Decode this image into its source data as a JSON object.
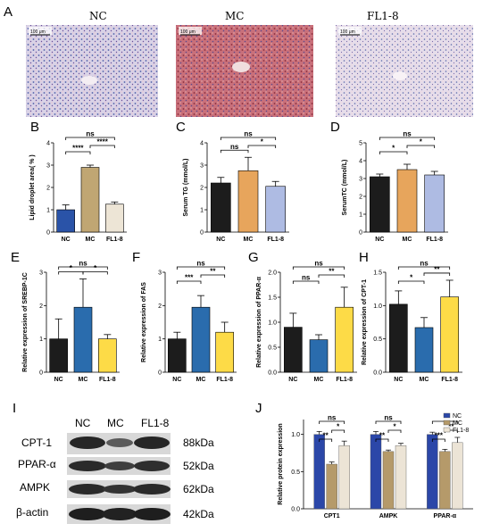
{
  "panel_letters": {
    "A": "A",
    "B": "B",
    "C": "C",
    "D": "D",
    "E": "E",
    "F": "F",
    "G": "G",
    "H": "H",
    "I": "I",
    "J": "J"
  },
  "colors": {
    "nc": "#1c1c1c",
    "mc_tan": "#c0a673",
    "fl_light": "#ede5d6",
    "mc_orange": "#e7a55c",
    "fl_blue": "#aebbe3",
    "mc_blue": "#2a6cad",
    "fl_yellow": "#fddb47",
    "j_nc": "#2b47a8",
    "j_mc": "#b59a6a",
    "j_fl": "#ece4d6"
  },
  "histology": {
    "groups": [
      "NC",
      "MC",
      "FL1-8"
    ],
    "scale_bar": "100 μm"
  },
  "western": {
    "lanes": [
      "NC",
      "MC",
      "FL1-8"
    ],
    "bands": [
      {
        "label": "CPT-1",
        "kda": "88kDa"
      },
      {
        "label": "PPAR-α",
        "kda": "52kDa"
      },
      {
        "label": "AMPK",
        "kda": "62kDa"
      },
      {
        "label": "β-actin",
        "kda": "42kDa"
      }
    ]
  },
  "chart_data": [
    {
      "panel": "B",
      "type": "bar",
      "categories": [
        "NC",
        "MC",
        "FL1-8"
      ],
      "values": [
        1.0,
        2.9,
        1.25
      ],
      "errors": [
        0.22,
        0.1,
        0.1
      ],
      "ylabel": "Lipid droplet area( % )",
      "ylim": [
        0,
        4
      ],
      "yticks": [
        "0",
        "1",
        "2",
        "3",
        "4"
      ],
      "sig": [
        {
          "from": 0,
          "to": 2,
          "label": "ns"
        },
        {
          "from": 0,
          "to": 1,
          "label": "****"
        },
        {
          "from": 1,
          "to": 2,
          "label": "****"
        }
      ]
    },
    {
      "panel": "C",
      "type": "bar",
      "categories": [
        "NC",
        "MC",
        "FL1-8"
      ],
      "values": [
        2.2,
        2.75,
        2.05
      ],
      "errors": [
        0.25,
        0.6,
        0.22
      ],
      "ylabel": "Serum TG (mmol/L)",
      "ylim": [
        0,
        4
      ],
      "yticks": [
        "0",
        "1",
        "2",
        "3",
        "4"
      ],
      "sig": [
        {
          "from": 0,
          "to": 2,
          "label": "ns"
        },
        {
          "from": 0,
          "to": 1,
          "label": "ns"
        },
        {
          "from": 1,
          "to": 2,
          "label": "*"
        }
      ]
    },
    {
      "panel": "D",
      "type": "bar",
      "categories": [
        "NC",
        "MC",
        "FL1-8"
      ],
      "values": [
        3.1,
        3.5,
        3.2
      ],
      "errors": [
        0.15,
        0.3,
        0.2
      ],
      "ylabel": "SerumTC (mmol/L)",
      "ylim": [
        0,
        5
      ],
      "yticks": [
        "0",
        "1",
        "2",
        "3",
        "4",
        "5"
      ],
      "sig": [
        {
          "from": 0,
          "to": 2,
          "label": "ns"
        },
        {
          "from": 0,
          "to": 1,
          "label": "*"
        },
        {
          "from": 1,
          "to": 2,
          "label": "*"
        }
      ]
    },
    {
      "panel": "E",
      "type": "bar",
      "categories": [
        "NC",
        "MC",
        "FL1-8"
      ],
      "values": [
        1.0,
        1.95,
        1.0
      ],
      "errors": [
        0.6,
        0.85,
        0.13
      ],
      "ylabel": "Relative expression of SREBP-1C",
      "ylim": [
        0,
        3
      ],
      "yticks": [
        "0",
        "1",
        "2",
        "3"
      ],
      "sig": [
        {
          "from": 0,
          "to": 2,
          "label": "ns"
        },
        {
          "from": 0,
          "to": 1,
          "label": "*"
        },
        {
          "from": 1,
          "to": 2,
          "label": "*"
        }
      ]
    },
    {
      "panel": "F",
      "type": "bar",
      "categories": [
        "NC",
        "MC",
        "FL1-8"
      ],
      "values": [
        1.0,
        1.95,
        1.2
      ],
      "errors": [
        0.2,
        0.35,
        0.3
      ],
      "ylabel": "Relative expression of FAS",
      "ylim": [
        0,
        3
      ],
      "yticks": [
        "0",
        "1",
        "2",
        "3"
      ],
      "sig": [
        {
          "from": 0,
          "to": 2,
          "label": "ns"
        },
        {
          "from": 0,
          "to": 1,
          "label": "***"
        },
        {
          "from": 1,
          "to": 2,
          "label": "**"
        }
      ]
    },
    {
      "panel": "G",
      "type": "bar",
      "categories": [
        "NC",
        "MC",
        "FL1-8"
      ],
      "values": [
        0.9,
        0.65,
        1.3
      ],
      "errors": [
        0.28,
        0.1,
        0.4
      ],
      "ylabel": "Relative expression of PPAR-α",
      "ylim": [
        0,
        2
      ],
      "yticks": [
        "0.0",
        "0.5",
        "1.0",
        "1.5",
        "2.0"
      ],
      "sig": [
        {
          "from": 0,
          "to": 2,
          "label": "ns"
        },
        {
          "from": 0,
          "to": 1,
          "label": "ns"
        },
        {
          "from": 1,
          "to": 2,
          "label": "**"
        }
      ]
    },
    {
      "panel": "H",
      "type": "bar",
      "categories": [
        "NC",
        "MC",
        "FL1-8"
      ],
      "values": [
        1.02,
        0.67,
        1.13
      ],
      "errors": [
        0.2,
        0.15,
        0.25
      ],
      "ylabel": "Relative expression of CPT-1",
      "ylim": [
        0,
        1.5
      ],
      "yticks": [
        "0.0",
        "0.5",
        "1.0",
        "1.5"
      ],
      "sig": [
        {
          "from": 0,
          "to": 2,
          "label": "ns"
        },
        {
          "from": 0,
          "to": 1,
          "label": "*"
        },
        {
          "from": 1,
          "to": 2,
          "label": "**"
        }
      ]
    },
    {
      "panel": "J",
      "type": "bar",
      "categories": [
        "CPT1",
        "AMPK",
        "PPAR-α"
      ],
      "ylabel": "Relative protein expression",
      "ylim": [
        0,
        1.2
      ],
      "yticks": [
        "0.0",
        "0.5",
        "1.0"
      ],
      "legend": "top-right",
      "series": [
        {
          "name": "NC",
          "values": [
            1.0,
            1.0,
            1.0
          ],
          "errors": [
            0.04,
            0.04,
            0.03
          ]
        },
        {
          "name": "MC",
          "values": [
            0.6,
            0.77,
            0.77
          ],
          "errors": [
            0.03,
            0.02,
            0.03
          ]
        },
        {
          "name": "FL1-8",
          "values": [
            0.85,
            0.85,
            0.89
          ],
          "errors": [
            0.06,
            0.03,
            0.07
          ]
        }
      ],
      "sig": [
        {
          "group": 0,
          "from": 0,
          "to": 2,
          "label": "ns"
        },
        {
          "group": 0,
          "from": 0,
          "to": 1,
          "label": "**"
        },
        {
          "group": 0,
          "from": 1,
          "to": 2,
          "label": "*"
        },
        {
          "group": 1,
          "from": 0,
          "to": 2,
          "label": "ns"
        },
        {
          "group": 1,
          "from": 0,
          "to": 1,
          "label": "**"
        },
        {
          "group": 1,
          "from": 1,
          "to": 2,
          "label": "*"
        },
        {
          "group": 2,
          "from": 0,
          "to": 2,
          "label": "*"
        },
        {
          "group": 2,
          "from": 1,
          "to": 2,
          "label": "**"
        },
        {
          "group": 2,
          "from": 0,
          "to": 1,
          "label": "***"
        }
      ]
    }
  ]
}
